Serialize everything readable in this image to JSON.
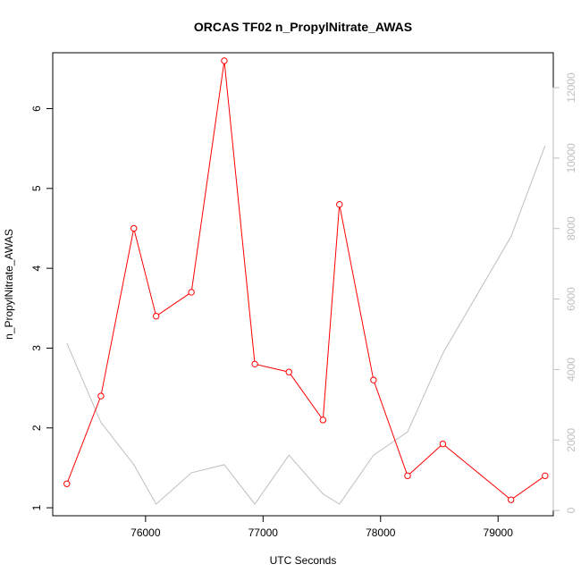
{
  "chart_data": {
    "type": "line",
    "title": "ORCAS TF02 n_PropylNitrate_AWAS",
    "xlabel": "UTC Seconds",
    "ylabel": "n_PropylNitrate_AWAS",
    "xlim": [
      75210,
      79470
    ],
    "ylim": [
      0.9,
      6.7
    ],
    "y2lim": [
      -150,
      12990
    ],
    "x_ticks": [
      76000,
      77000,
      78000,
      79000
    ],
    "y_ticks": [
      1,
      2,
      3,
      4,
      5,
      6
    ],
    "y2_ticks": [
      0,
      2000,
      4000,
      6000,
      8000,
      10000,
      12000
    ],
    "grid": false,
    "series": [
      {
        "axis": "left",
        "color": "#ff0000",
        "markers": "open-circle",
        "x": [
          75330,
          75620,
          75900,
          76090,
          76390,
          76670,
          76930,
          77220,
          77510,
          77650,
          77940,
          78230,
          78530,
          79110,
          79400
        ],
        "y": [
          1.3,
          2.4,
          4.5,
          3.4,
          3.7,
          6.6,
          2.8,
          2.7,
          2.1,
          4.8,
          2.6,
          1.4,
          1.8,
          1.1,
          1.4
        ]
      },
      {
        "axis": "right",
        "color": "#bebebe",
        "markers": "none",
        "x": [
          75330,
          75620,
          75900,
          76090,
          76390,
          76670,
          76930,
          77220,
          77510,
          77650,
          77940,
          78230,
          78530,
          79110,
          79400
        ],
        "y": [
          4750,
          2500,
          1300,
          180,
          1070,
          1300,
          180,
          1570,
          470,
          180,
          1570,
          2230,
          4460,
          7770,
          10350
        ]
      }
    ]
  }
}
